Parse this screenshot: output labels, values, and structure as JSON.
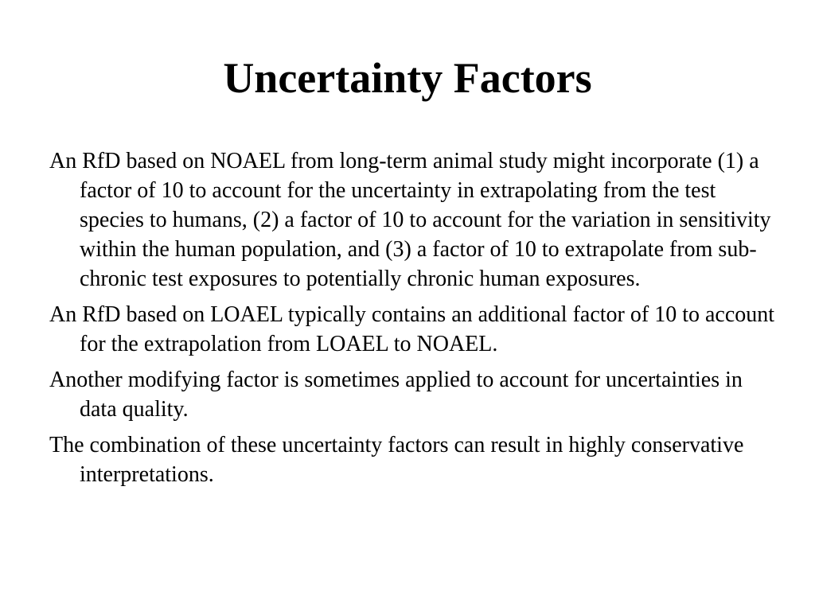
{
  "slide": {
    "title": "Uncertainty Factors",
    "paragraphs": [
      "An RfD based on NOAEL from long-term animal study might incorporate (1) a factor of 10 to account for the uncertainty in extrapolating from the test species to humans, (2) a factor of 10 to account for the variation in sensitivity within the human population, and (3) a factor of 10 to extrapolate from sub-chronic test exposures to potentially chronic human exposures.",
      "An RfD based on LOAEL typically contains an additional factor of 10 to account for the extrapolation from LOAEL to NOAEL.",
      "Another modifying factor is sometimes applied to account for uncertainties in data quality.",
      "The combination of these uncertainty factors can result in highly conservative interpretations."
    ]
  }
}
